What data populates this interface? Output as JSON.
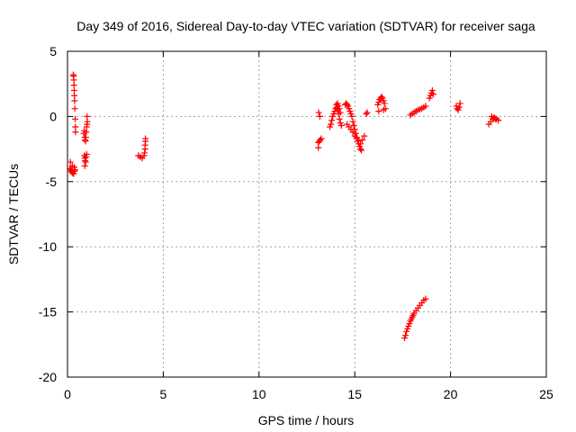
{
  "chart_data": {
    "type": "scatter",
    "title": "Day 349 of 2016, Sidereal Day-to-day VTEC variation (SDTVAR) for receiver saga",
    "xlabel": "GPS time / hours",
    "ylabel": "SDTVAR / TECUs",
    "xlim": [
      0,
      25
    ],
    "ylim": [
      -20,
      5
    ],
    "xticks": [
      0,
      5,
      10,
      15,
      20,
      25
    ],
    "yticks": [
      -20,
      -15,
      -10,
      -5,
      0,
      5
    ],
    "xtick_labels": [
      "0",
      "5",
      "10",
      "15",
      "20",
      "25"
    ],
    "ytick_labels": [
      "-20",
      "-15",
      "-10",
      "-5",
      "0",
      "5"
    ],
    "grid": true,
    "marker": "+",
    "series_color": "#ff0000",
    "series": [
      {
        "name": "SDTVAR",
        "x": [
          0.12,
          0.16,
          0.2,
          0.24,
          0.28,
          0.32,
          0.36,
          0.4,
          0.15,
          0.25,
          0.35,
          0.3,
          0.32,
          0.33,
          0.34,
          0.35,
          0.36,
          0.37,
          0.38,
          0.4,
          0.41,
          0.42,
          0.9,
          0.92,
          0.94,
          0.96,
          0.98,
          1.0,
          1.02,
          1.04,
          0.88,
          0.9,
          0.92,
          0.95,
          0.97,
          1.0,
          1.02,
          0.85,
          0.87,
          0.9,
          3.7,
          3.8,
          3.9,
          4.0,
          4.02,
          4.05,
          4.05,
          4.07,
          4.07,
          13.1,
          13.15,
          13.2,
          13.25,
          13.12,
          13.18,
          13.1,
          13.7,
          13.75,
          13.8,
          13.85,
          13.9,
          13.95,
          14.0,
          14.05,
          14.1,
          14.15,
          14.2,
          14.25,
          14.3,
          14.05,
          14.1,
          14.15,
          14.2,
          14.25,
          14.5,
          14.55,
          14.6,
          14.65,
          14.7,
          14.75,
          14.8,
          14.85,
          14.9,
          14.95,
          15.0,
          15.05,
          15.1,
          15.15,
          15.2,
          15.25,
          15.3,
          15.35,
          14.6,
          14.7,
          14.8,
          14.9,
          15.0,
          15.1,
          15.2,
          15.3,
          15.4,
          15.5,
          15.6,
          15.65,
          16.2,
          16.25,
          16.3,
          16.35,
          16.4,
          16.45,
          16.5,
          16.55,
          16.6,
          16.25,
          16.5,
          17.6,
          17.7,
          17.8,
          17.9,
          18.0,
          18.1,
          18.2,
          18.3,
          18.4,
          18.5,
          18.6,
          18.7,
          17.65,
          17.75,
          17.85,
          17.95,
          18.05,
          17.9,
          18.0,
          18.1,
          18.2,
          18.3,
          18.4,
          18.5,
          18.6,
          18.7,
          18.9,
          18.95,
          19.0,
          19.05,
          19.1,
          20.3,
          20.35,
          20.4,
          20.45,
          20.5,
          22.0,
          22.1,
          22.2,
          22.3,
          22.4,
          22.5,
          22.15,
          22.25,
          22.35
        ],
        "y": [
          -4.0,
          -4.1,
          -4.2,
          -4.3,
          -4.35,
          -4.4,
          -4.2,
          -4.1,
          -3.5,
          -3.8,
          -3.9,
          3.2,
          3.1,
          2.8,
          2.4,
          2.0,
          1.6,
          1.2,
          0.6,
          -0.2,
          -0.8,
          -1.2,
          -1.6,
          -1.8,
          -1.9,
          -1.6,
          -1.2,
          -0.8,
          -0.6,
          -0.4,
          -3.0,
          -3.2,
          -3.4,
          -3.5,
          -3.1,
          -2.9,
          0.0,
          -1.3,
          -1.1,
          -3.8,
          -3.0,
          -3.1,
          -3.2,
          -3.0,
          -2.8,
          -2.5,
          -2.2,
          -1.9,
          -1.7,
          -2.0,
          -1.9,
          -1.8,
          -1.7,
          0.3,
          0.0,
          -2.4,
          -0.8,
          -0.6,
          -0.3,
          0.0,
          0.2,
          0.4,
          0.6,
          0.7,
          0.5,
          0.2,
          -0.2,
          -0.5,
          -0.7,
          0.9,
          1.0,
          0.8,
          0.6,
          0.3,
          0.9,
          1.0,
          0.9,
          0.8,
          0.6,
          0.4,
          0.2,
          0.0,
          -0.4,
          -0.7,
          -1.0,
          -1.3,
          -1.6,
          -1.9,
          -2.1,
          -2.3,
          -2.5,
          -2.6,
          -0.6,
          -0.8,
          -1.0,
          -1.2,
          -1.5,
          -1.7,
          -1.9,
          -2.1,
          -1.8,
          -1.5,
          0.2,
          0.3,
          0.9,
          1.1,
          1.3,
          1.4,
          1.5,
          1.4,
          1.2,
          1.0,
          0.6,
          0.4,
          0.5,
          -17.0,
          -16.5,
          -16.1,
          -15.7,
          -15.4,
          -15.1,
          -14.9,
          -14.7,
          -14.5,
          -14.3,
          -14.1,
          -14.0,
          -16.8,
          -16.3,
          -15.9,
          -15.55,
          -15.25,
          0.1,
          0.2,
          0.3,
          0.4,
          0.5,
          0.55,
          0.6,
          0.7,
          0.8,
          1.4,
          1.6,
          1.8,
          2.0,
          1.7,
          0.8,
          0.6,
          0.5,
          0.7,
          1.0,
          -0.6,
          -0.4,
          -0.2,
          -0.1,
          -0.2,
          -0.3,
          0.0,
          -0.1,
          -0.2
        ]
      }
    ]
  }
}
